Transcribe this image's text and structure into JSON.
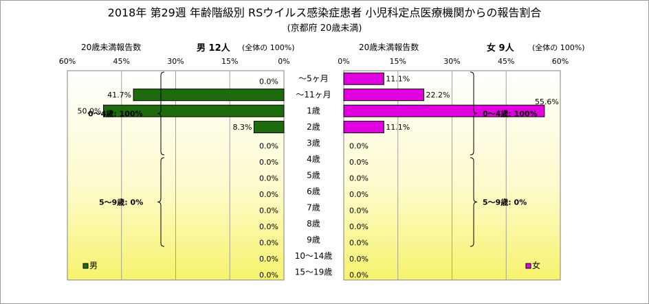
{
  "title": "2018年 第29週 年齢階級別 RSウイルス感染症患者 小児科定点医療機関からの報告割合",
  "subtitle": "(京都府 20歳未満)",
  "chart_data": {
    "type": "bar",
    "categories": [
      "～5ヶ月",
      "～11ヶ月",
      "1歳",
      "2歳",
      "3歳",
      "4歳",
      "5歳",
      "6歳",
      "7歳",
      "8歳",
      "9歳",
      "10～14歳",
      "15～19歳"
    ],
    "xlim": [
      0,
      60
    ],
    "ticks": [
      60,
      45,
      30,
      15,
      0
    ],
    "tick_labels_male": [
      "60%",
      "45%",
      "30%",
      "15%",
      "0%"
    ],
    "tick_labels_female": [
      "0%",
      "15%",
      "30%",
      "45%",
      "60%"
    ],
    "grid": true,
    "series": [
      {
        "name": "男",
        "color": "#1e6b0e",
        "values": [
          0.0,
          41.7,
          50.0,
          8.3,
          0.0,
          0.0,
          0.0,
          0.0,
          0.0,
          0.0,
          0.0,
          0.0,
          0.0
        ],
        "labels": [
          "0.0%",
          "41.7%",
          "50.0%",
          "8.3%",
          "0.0%",
          "0.0%",
          "0.0%",
          "0.0%",
          "0.0%",
          "0.0%",
          "0.0%",
          "0.0%",
          "0.0%"
        ]
      },
      {
        "name": "女",
        "color": "#e000e0",
        "values": [
          11.1,
          22.2,
          55.6,
          11.1,
          0.0,
          0.0,
          0.0,
          0.0,
          0.0,
          0.0,
          0.0,
          0.0,
          0.0
        ],
        "labels": [
          "11.1%",
          "22.2%",
          "55.6%",
          "11.1%",
          "0.0%",
          "0.0%",
          "0.0%",
          "0.0%",
          "0.0%",
          "0.0%",
          "0.0%",
          "0.0%",
          "0.0%"
        ]
      }
    ],
    "male_header": {
      "count_label": "20歳未満報告数",
      "sex_count": "男 12人",
      "total": "(全体の 100%)"
    },
    "female_header": {
      "count_label": "20歳未満報告数",
      "sex_count": "女 9人",
      "total": "(全体の 100%)"
    },
    "annotations": {
      "male_group1": "0～4歳: 100%",
      "male_group2": "5～9歳: 0%",
      "female_group1": "0～4歳: 100%",
      "female_group2": "5～9歳: 0%"
    },
    "legend": {
      "male": "男",
      "female": "女",
      "placement": "bottom"
    }
  }
}
